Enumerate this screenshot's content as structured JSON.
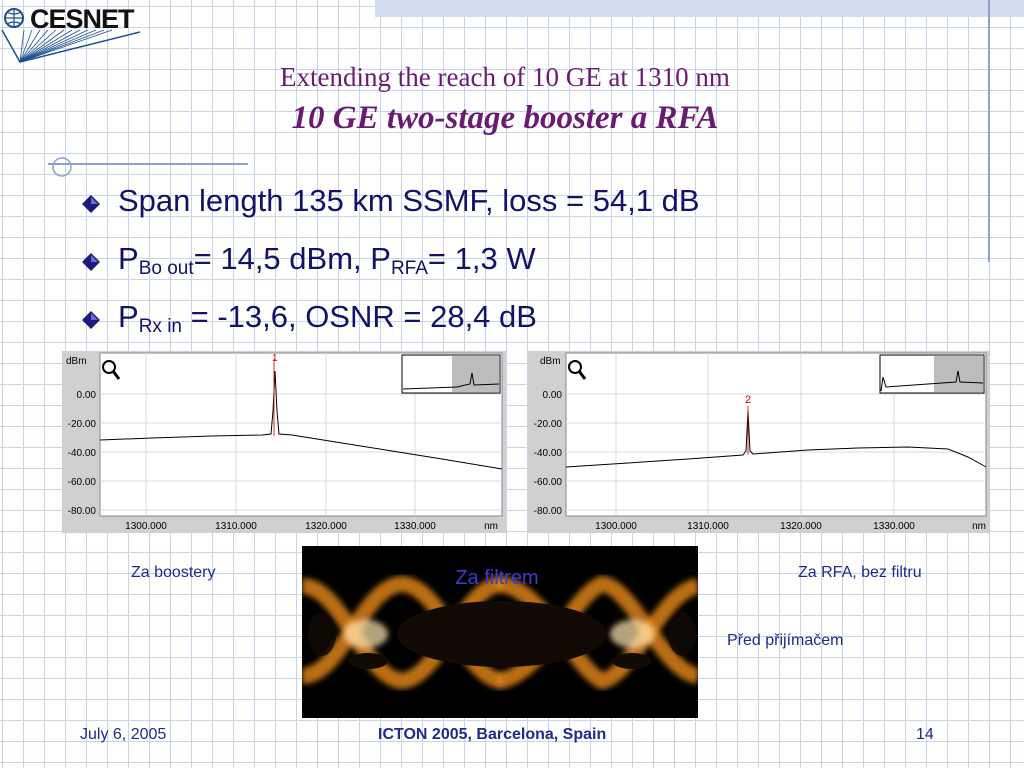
{
  "header": {
    "logo_text": "CESNET",
    "title_line1": "Extending the reach of 10 GE at 1310 nm",
    "title_line2": "10 GE two-stage booster a RFA"
  },
  "bullets": [
    {
      "id": "span",
      "parts": {
        "main": "Span length 135 km SSMF, loss = 54,1 dB"
      }
    },
    {
      "id": "power",
      "parts": {
        "p1": "P",
        "sub1": "Bo out",
        "mid": "= 14,5 dBm, P",
        "sub2": "RFA",
        "end": "= 1,3 W"
      }
    },
    {
      "id": "rx",
      "parts": {
        "p1": "P",
        "sub1": "Rx in",
        "end": " = -13,6, OSNR = 28,4 dB"
      }
    }
  ],
  "spectra": [
    {
      "id": "left",
      "unit_label": "dBm",
      "y_ticks": [
        "0.00",
        "-20.00",
        "-40.00",
        "-60.00",
        "-80.00"
      ],
      "x_ticks": [
        "1300.000",
        "1310.000",
        "1320.000",
        "1330.000"
      ],
      "x_unit": "nm",
      "marker_label": "1",
      "caption": "Za boostery"
    },
    {
      "id": "right",
      "unit_label": "dBm",
      "y_ticks": [
        "0.00",
        "-20.00",
        "-40.00",
        "-60.00",
        "-80.00"
      ],
      "x_ticks": [
        "1300.000",
        "1310.000",
        "1320.000",
        "1330.000"
      ],
      "x_unit": "nm",
      "marker_label": "2",
      "caption": "Za RFA, bez filtru"
    }
  ],
  "eye_diagram": {
    "overlay_text": "Za filtrem",
    "caption": "Před přijímačem"
  },
  "footer": {
    "date": "July 6,  2005",
    "event": "ICTON 2005, Barcelona, Spain",
    "page": "14"
  },
  "colors": {
    "title": "#6b1a72",
    "bullet_text": "#12126a",
    "caption": "#1f2a8c",
    "grid": "#c9d3ea"
  }
}
